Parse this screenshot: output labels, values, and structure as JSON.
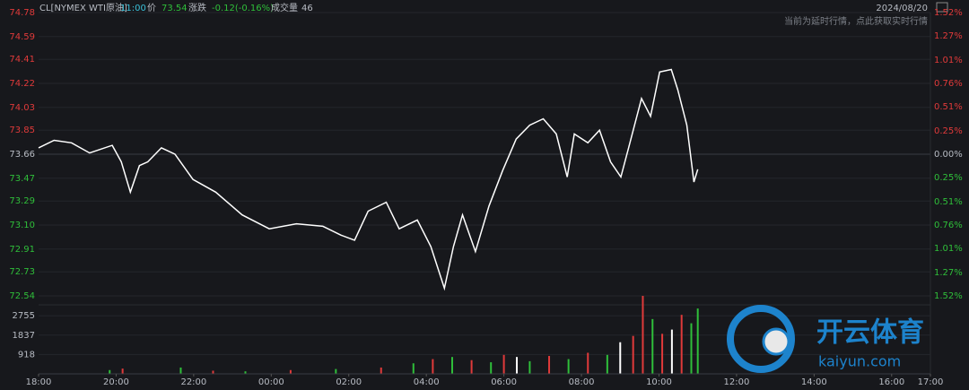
{
  "header": {
    "symbol": "CL[NYMEX WTI原油]",
    "time": "11:00",
    "price_label": "价",
    "price": "73.54",
    "change_label": "涨跌",
    "change": "-0.12(-0.16%)",
    "volume_label": "成交量",
    "volume": "46",
    "date": "2024/08/20",
    "notice": "当前为延时行情，点此获取实时行情"
  },
  "watermark": {
    "brand": "开云体育",
    "site": "kaiyun.com"
  },
  "chart_data": [
    {
      "type": "line",
      "color": "#ffffff",
      "x": [
        "18:00",
        "18:24",
        "18:51",
        "19:19",
        "19:54",
        "20:08",
        "20:22",
        "20:36",
        "20:49",
        "21:10",
        "21:31",
        "21:59",
        "22:34",
        "23:15",
        "23:57",
        "00:39",
        "01:20",
        "01:48",
        "02:09",
        "02:30",
        "02:58",
        "03:18",
        "03:46",
        "04:07",
        "04:28",
        "04:42",
        "04:56",
        "05:16",
        "05:37",
        "05:58",
        "06:19",
        "06:40",
        "07:01",
        "07:21",
        "07:38",
        "07:49",
        "08:10",
        "08:28",
        "08:45",
        "09:01",
        "09:13",
        "09:33",
        "09:47",
        "10:01",
        "10:19",
        "10:29",
        "10:43",
        "10:54",
        "11:00"
      ],
      "values": [
        73.71,
        73.77,
        73.75,
        73.67,
        73.73,
        73.6,
        73.36,
        73.57,
        73.6,
        73.71,
        73.66,
        73.46,
        73.36,
        73.18,
        73.07,
        73.11,
        73.09,
        73.02,
        72.98,
        73.21,
        73.28,
        73.07,
        73.14,
        72.93,
        72.6,
        72.93,
        73.18,
        72.89,
        73.25,
        73.53,
        73.78,
        73.89,
        73.94,
        73.82,
        73.48,
        73.82,
        73.75,
        73.85,
        73.6,
        73.48,
        73.71,
        74.1,
        73.96,
        74.31,
        74.33,
        74.17,
        73.89,
        73.44,
        73.54
      ],
      "ylim": [
        72.54,
        74.78
      ],
      "yticks": [
        74.78,
        74.59,
        74.41,
        74.22,
        74.03,
        73.85,
        73.66,
        73.47,
        73.29,
        {
          "value": 73.1,
          "label": "73.10"
        },
        72.91,
        72.73,
        72.54
      ],
      "y2lim": [
        -1.52,
        1.52
      ],
      "y2ticks": [
        {
          "value": 1.52,
          "label": "1.52%"
        },
        {
          "value": 1.27,
          "label": "1.27%"
        },
        {
          "value": 1.01,
          "label": "1.01%"
        },
        {
          "value": 0.76,
          "label": "0.76%"
        },
        {
          "value": 0.51,
          "label": "0.51%"
        },
        {
          "value": 0.25,
          "label": "0.25%"
        },
        {
          "value": 0,
          "label": "0.00%"
        },
        {
          "value": -0.25,
          "label": "0.25%"
        },
        {
          "value": -0.51,
          "label": "0.51%"
        },
        {
          "value": -0.76,
          "label": "0.76%"
        },
        {
          "value": -1.01,
          "label": "1.01%"
        },
        {
          "value": -1.27,
          "label": "1.27%"
        },
        {
          "value": -1.52,
          "label": "1.52%"
        }
      ],
      "up_color": "#e03a3a",
      "down_color": "#2fbf3a",
      "grid": true
    },
    {
      "type": "bar",
      "x": [
        "19:50",
        "20:10",
        "21:40",
        "22:30",
        "23:20",
        "00:30",
        "01:40",
        "02:50",
        "03:40",
        "04:10",
        "04:40",
        "05:10",
        "05:40",
        "06:00",
        "06:20",
        "06:40",
        "07:10",
        "07:40",
        "08:10",
        "08:40",
        "09:00",
        "09:20",
        "09:35",
        "09:50",
        "10:05",
        "10:20",
        "10:35",
        "10:50",
        "11:00"
      ],
      "values": [
        180,
        250,
        300,
        150,
        120,
        180,
        230,
        300,
        500,
        700,
        800,
        650,
        550,
        900,
        800,
        600,
        850,
        700,
        1000,
        900,
        1500,
        1800,
        3700,
        2600,
        1900,
        2100,
        2800,
        2400,
        3100
      ],
      "colors": [
        "#2fbf3a",
        "#e03a3a",
        "#2fbf3a",
        "#e03a3a",
        "#2fbf3a",
        "#e03a3a",
        "#2fbf3a",
        "#e03a3a",
        "#2fbf3a",
        "#e03a3a",
        "#2fbf3a",
        "#e03a3a",
        "#2fbf3a",
        "#e03a3a",
        "#ffffff",
        "#2fbf3a",
        "#e03a3a",
        "#2fbf3a",
        "#e03a3a",
        "#2fbf3a",
        "#ffffff",
        "#e03a3a",
        "#e03a3a",
        "#2fbf3a",
        "#e03a3a",
        "#ffffff",
        "#e03a3a",
        "#2fbf3a",
        "#2fbf3a"
      ],
      "ylim": [
        0,
        3700
      ],
      "yticks": [
        918,
        1837,
        2755
      ],
      "xticks": [
        "18:00",
        "20:00",
        "22:00",
        "00:00",
        "02:00",
        "04:00",
        "06:00",
        "08:00",
        "10:00",
        "12:00",
        "14:00",
        "16:00",
        "17:00"
      ]
    }
  ]
}
